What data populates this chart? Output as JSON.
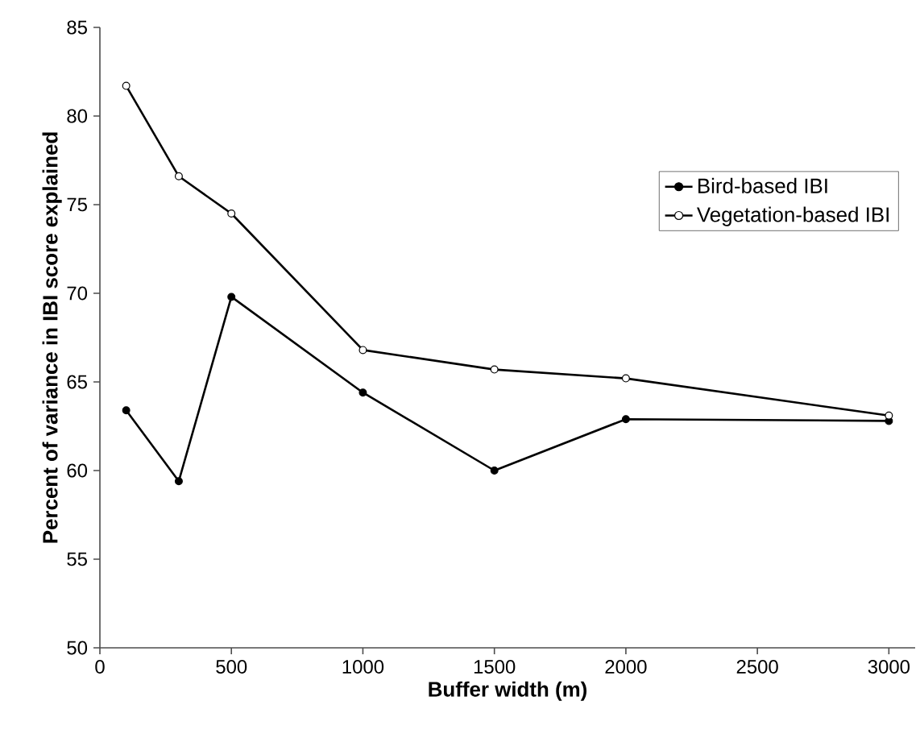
{
  "chart_data": {
    "type": "line",
    "xlabel": "Buffer width (m)",
    "ylabel": "Percent of variance in IBI score explained",
    "xlim": [
      0,
      3100
    ],
    "xticks": [
      0,
      500,
      1000,
      1500,
      2000,
      2500,
      3000
    ],
    "ylim": [
      50,
      85
    ],
    "yticks": [
      50,
      55,
      60,
      65,
      70,
      75,
      80,
      85
    ],
    "x": [
      100,
      300,
      500,
      1000,
      1500,
      2000,
      3000
    ],
    "series": [
      {
        "name": "Bird-based IBI",
        "color": "#000000",
        "values": [
          63.4,
          59.4,
          69.8,
          64.4,
          60.0,
          62.9,
          62.8
        ]
      },
      {
        "name": "Vegetation-based IBI",
        "color": "#000000",
        "values": [
          81.7,
          76.6,
          74.5,
          66.8,
          65.7,
          65.2,
          63.1
        ]
      }
    ],
    "marker": "circle",
    "line_style": "solid",
    "legend": "right",
    "grid": false
  }
}
